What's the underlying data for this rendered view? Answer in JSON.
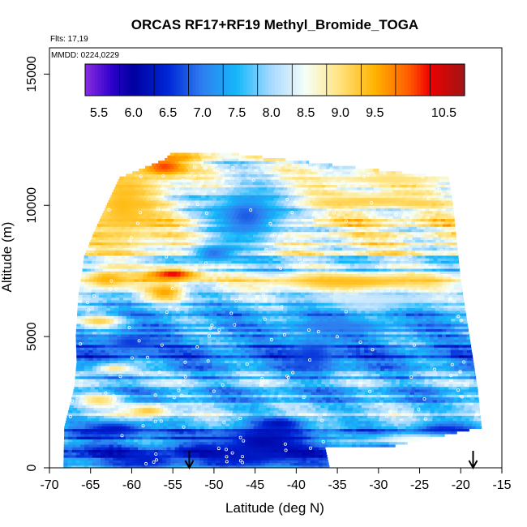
{
  "chart_data": {
    "type": "heatmap",
    "title": "ORCAS RF17+RF19 Methyl_Bromide_TOGA",
    "flights_note": "Flts: 17,19",
    "date_note": "MMDD: 0224,0229",
    "xlabel": "Latitude (deg N)",
    "ylabel": "Altitude (m)",
    "xlim": [
      -70,
      -15
    ],
    "ylim": [
      0,
      16000
    ],
    "x_ticks": [
      -70,
      -65,
      -60,
      -55,
      -50,
      -45,
      -40,
      -35,
      -30,
      -25,
      -20,
      -15
    ],
    "y_ticks": [
      0,
      5000,
      10000,
      15000
    ],
    "colorbar": {
      "min": 5.3,
      "max": 10.8,
      "tick_values": [
        5.5,
        6.0,
        6.5,
        7.0,
        7.5,
        8.0,
        8.5,
        9.0,
        9.5,
        10.5
      ],
      "tick_labels": [
        "5.5",
        "6.0",
        "6.5",
        "7.0",
        "7.5",
        "8.0",
        "8.5",
        "9.0",
        "9.5",
        "10.5"
      ],
      "stops": [
        {
          "v": 5.3,
          "c": "#8b2be2"
        },
        {
          "v": 5.7,
          "c": "#2a00c8"
        },
        {
          "v": 6.0,
          "c": "#0000a0"
        },
        {
          "v": 6.5,
          "c": "#0026d6"
        },
        {
          "v": 7.0,
          "c": "#2f7ff0"
        },
        {
          "v": 7.5,
          "c": "#15b8fa"
        },
        {
          "v": 8.0,
          "c": "#a9d9ff"
        },
        {
          "v": 8.5,
          "c": "#f6fff8"
        },
        {
          "v": 9.0,
          "c": "#ffe27a"
        },
        {
          "v": 9.5,
          "c": "#ffb300"
        },
        {
          "v": 10.0,
          "c": "#ff5a00"
        },
        {
          "v": 10.3,
          "c": "#ee0000"
        },
        {
          "v": 10.8,
          "c": "#a01515"
        }
      ]
    },
    "arrows_x": [
      -53,
      -18.5
    ],
    "envelope": {
      "left": [
        [
          0,
          -68.3
        ],
        [
          1500,
          -68.2
        ],
        [
          3000,
          -67.0
        ],
        [
          4000,
          -66.7
        ],
        [
          5000,
          -66.8
        ],
        [
          6500,
          -66.5
        ],
        [
          7500,
          -66.0
        ],
        [
          8000,
          -65.8
        ],
        [
          9000,
          -64.5
        ],
        [
          10000,
          -63.0
        ],
        [
          11000,
          -61.5
        ],
        [
          11700,
          -56.0
        ],
        [
          12000,
          -55.0
        ]
      ],
      "right": [
        [
          0,
          -36.0
        ],
        [
          700,
          -36.5
        ],
        [
          800,
          -28.0
        ],
        [
          1500,
          -17.5
        ],
        [
          3000,
          -18.0
        ],
        [
          5000,
          -19.0
        ],
        [
          7000,
          -20.0
        ],
        [
          8500,
          -20.5
        ],
        [
          10000,
          -21.0
        ],
        [
          11000,
          -21.5
        ],
        [
          11900,
          -47.0
        ],
        [
          12000,
          -47.5
        ]
      ]
    },
    "base_field": [
      [
        0,
        7.3
      ],
      [
        500,
        6.6
      ],
      [
        1000,
        7.1
      ],
      [
        1500,
        7.2
      ],
      [
        2000,
        8.4
      ],
      [
        2500,
        7.2
      ],
      [
        3000,
        7.6
      ],
      [
        3500,
        7.4
      ],
      [
        4000,
        7.2
      ],
      [
        4500,
        6.8
      ],
      [
        5000,
        7.4
      ],
      [
        5500,
        7.5
      ],
      [
        6000,
        7.3
      ],
      [
        6500,
        7.8
      ],
      [
        7000,
        8.8
      ],
      [
        7500,
        7.8
      ],
      [
        8000,
        8.3
      ],
      [
        8500,
        8.6
      ],
      [
        9000,
        8.5
      ],
      [
        9500,
        8.9
      ],
      [
        10000,
        8.4
      ],
      [
        10500,
        8.3
      ],
      [
        11000,
        8.6
      ],
      [
        11500,
        7.9
      ],
      [
        12000,
        8.8
      ]
    ],
    "anomalies": [
      {
        "lat": -61,
        "alt": 10000,
        "rlat": 5,
        "ralt": 1700,
        "value": 9.4
      },
      {
        "lat": -56,
        "alt": 11500,
        "rlat": 3,
        "ralt": 400,
        "value": 10.1
      },
      {
        "lat": -55,
        "alt": 7400,
        "rlat": 3.5,
        "ralt": 250,
        "value": 10.4
      },
      {
        "lat": -56,
        "alt": 6700,
        "rlat": 2.5,
        "ralt": 350,
        "value": 9.6
      },
      {
        "lat": -63,
        "alt": 7200,
        "rlat": 3,
        "ralt": 400,
        "value": 9.5
      },
      {
        "lat": -33,
        "alt": 7100,
        "rlat": 12,
        "ralt": 350,
        "value": 9.4
      },
      {
        "lat": -31,
        "alt": 10200,
        "rlat": 11,
        "ralt": 300,
        "value": 9.2
      },
      {
        "lat": -29,
        "alt": 11000,
        "rlat": 9,
        "ralt": 200,
        "value": 9.0
      },
      {
        "lat": -46,
        "alt": 9600,
        "rlat": 5,
        "ralt": 1100,
        "value": 6.8
      },
      {
        "lat": -50,
        "alt": 8200,
        "rlat": 3,
        "ralt": 350,
        "value": 6.9
      },
      {
        "lat": -44,
        "alt": 1000,
        "rlat": 6,
        "ralt": 600,
        "value": 6.1
      },
      {
        "lat": -46,
        "alt": 400,
        "rlat": 5,
        "ralt": 300,
        "value": 6.3
      },
      {
        "lat": -42,
        "alt": 1700,
        "rlat": 3,
        "ralt": 250,
        "value": 6.2
      },
      {
        "lat": -58,
        "alt": 300,
        "rlat": 4,
        "ralt": 300,
        "value": 6.4
      },
      {
        "lat": -38,
        "alt": 4300,
        "rlat": 3,
        "ralt": 700,
        "value": 6.6
      },
      {
        "lat": -62,
        "alt": 1500,
        "rlat": 4,
        "ralt": 300,
        "value": 6.3
      },
      {
        "lat": -60,
        "alt": 4800,
        "rlat": 4,
        "ralt": 400,
        "value": 6.6
      },
      {
        "lat": -64,
        "alt": 2600,
        "rlat": 3,
        "ralt": 250,
        "value": 9.1
      },
      {
        "lat": -58,
        "alt": 2200,
        "rlat": 3,
        "ralt": 250,
        "value": 9.3
      },
      {
        "lat": -62,
        "alt": 3800,
        "rlat": 3,
        "ralt": 200,
        "value": 9.0
      },
      {
        "lat": -64,
        "alt": 5600,
        "rlat": 3,
        "ralt": 250,
        "value": 9.2
      },
      {
        "lat": -25,
        "alt": 1100,
        "rlat": 8,
        "ralt": 200,
        "value": 8.6
      },
      {
        "lat": -22,
        "alt": 1500,
        "rlat": 4,
        "ralt": 200,
        "value": 6.5
      },
      {
        "lat": -30,
        "alt": 6400,
        "rlat": 8,
        "ralt": 300,
        "value": 8.2
      },
      {
        "lat": -35,
        "alt": 5400,
        "rlat": 6,
        "ralt": 300,
        "value": 7.0
      }
    ]
  }
}
